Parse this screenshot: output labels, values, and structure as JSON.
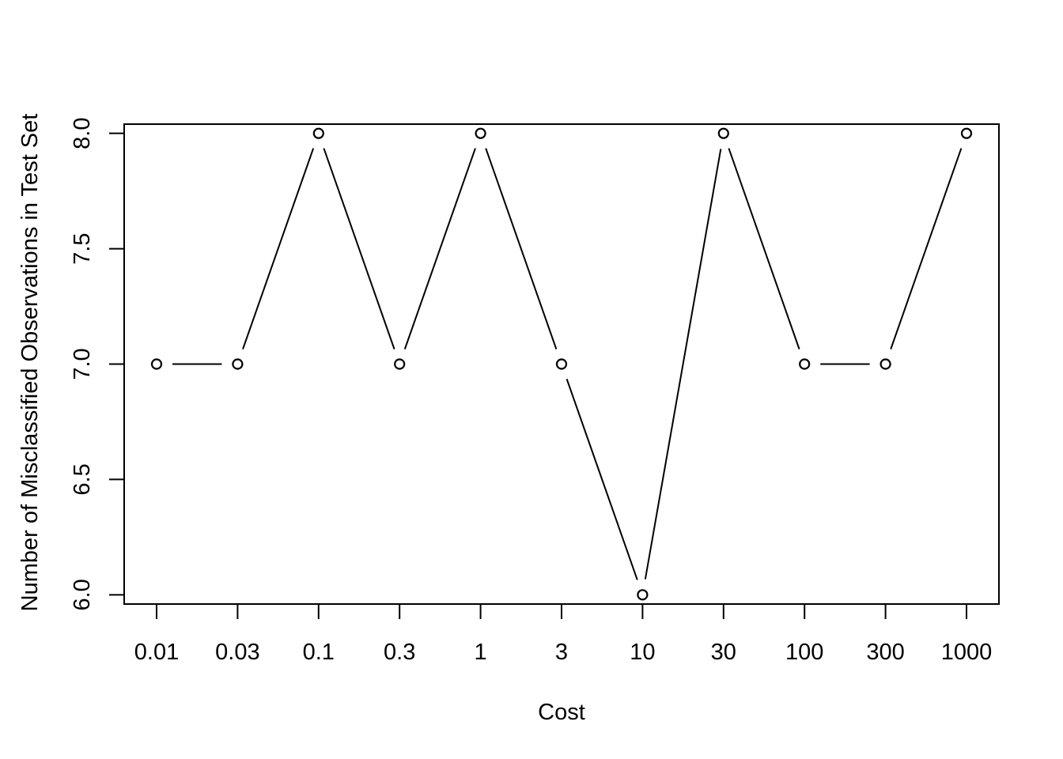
{
  "chart_data": {
    "type": "line",
    "title": "",
    "xlabel": "Cost",
    "ylabel": "Number of Misclassified Observations in Test Set",
    "categories": [
      "0.01",
      "0.03",
      "0.1",
      "0.3",
      "1",
      "3",
      "10",
      "30",
      "100",
      "300",
      "1000"
    ],
    "series": [
      {
        "values": [
          7,
          7,
          8,
          7,
          8,
          7,
          6,
          8,
          7,
          7,
          8
        ]
      }
    ],
    "ylim": [
      5.96,
      8.04
    ],
    "yticks": [
      {
        "value": 6.0,
        "label": "6.0"
      },
      {
        "value": 6.5,
        "label": "6.5"
      },
      {
        "value": 7.0,
        "label": "7.0"
      },
      {
        "value": 7.5,
        "label": "7.5"
      },
      {
        "value": 8.0,
        "label": "8.0"
      }
    ],
    "marker": "open-circle",
    "line_style": "broken-line",
    "grid": false,
    "legend": "none",
    "colors": {
      "line": "#000000",
      "marker_stroke": "#000000",
      "marker_fill": "#ffffff",
      "background": "#ffffff"
    }
  }
}
